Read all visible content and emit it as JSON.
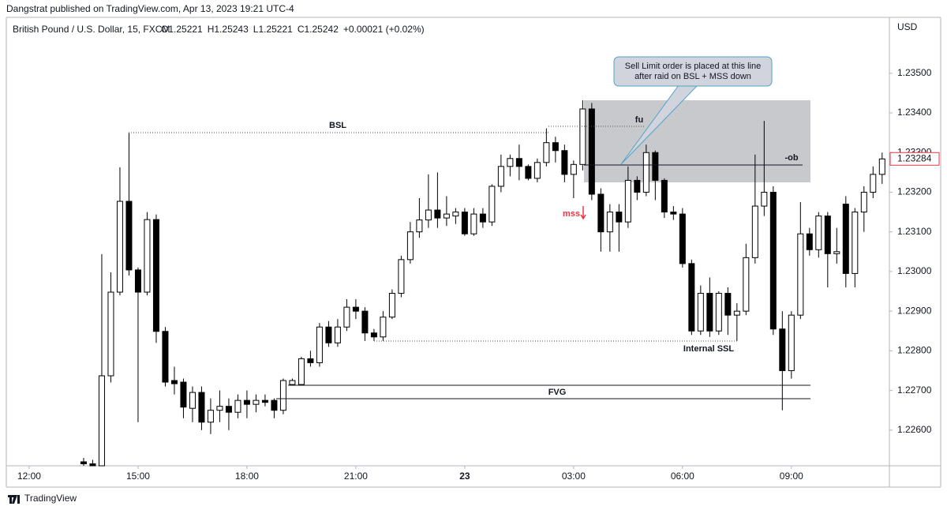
{
  "chart_data": {
    "type": "candlestick",
    "published_by": "Dangstrat published on TradingView.com, Apr 13, 2023 19:21 UTC-4",
    "title": "British Pound / U.S. Dollar, 15, FXCM",
    "header_values": [
      "O1.25221",
      "H1.25243",
      "L1.25221",
      "C1.25242",
      "+0.00021 (+0.02%)"
    ],
    "y_axis_label": "USD",
    "brand": "TradingView",
    "annotations": {
      "bsl": "BSL",
      "internal_ssl": "Internal SSL",
      "fvg": "FVG",
      "fu": "fu",
      "ob": "-ob",
      "mss": "mss",
      "callout": [
        "Sell Limit order is placed at this line",
        "after raid on BSL + MSS down"
      ]
    },
    "up_color": "#ffffff",
    "down_color": "#000000",
    "border_color": "#000000",
    "xlim": [
      -0.63,
      23.7
    ],
    "xticks": [
      {
        "value": 0,
        "label": "12:00"
      },
      {
        "value": 3,
        "label": "15:00"
      },
      {
        "value": 6,
        "label": "18:00"
      },
      {
        "value": 9,
        "label": "21:00"
      },
      {
        "value": 12,
        "label": "23"
      },
      {
        "value": 15,
        "label": "03:00"
      },
      {
        "value": 18,
        "label": "06:00"
      },
      {
        "value": 21,
        "label": "09:00"
      }
    ],
    "ylim": [
      1.2251,
      1.23641
    ],
    "yticks": [
      {
        "value": 1.226,
        "label": "1.22600"
      },
      {
        "value": 1.227,
        "label": "1.22700"
      },
      {
        "value": 1.228,
        "label": "1.22800"
      },
      {
        "value": 1.229,
        "label": "1.22900"
      },
      {
        "value": 1.23,
        "label": "1.23000"
      },
      {
        "value": 1.231,
        "label": "1.23100"
      },
      {
        "value": 1.232,
        "label": "1.23200"
      },
      {
        "value": 1.233,
        "label": "1.23300"
      },
      {
        "value": 1.234,
        "label": "1.23400"
      },
      {
        "value": 1.235,
        "label": "1.23500"
      }
    ],
    "x": [
      1.5,
      1.75,
      2,
      2.25,
      2.5,
      2.75,
      3,
      3.25,
      3.5,
      3.75,
      4,
      4.25,
      4.5,
      4.75,
      5,
      5.25,
      5.5,
      5.75,
      6,
      6.25,
      6.5,
      6.75,
      7,
      7.25,
      7.5,
      7.75,
      8,
      8.25,
      8.5,
      8.75,
      9,
      9.25,
      9.5,
      9.75,
      10,
      10.25,
      10.5,
      10.75,
      11,
      11.25,
      11.5,
      11.75,
      12,
      12.25,
      12.5,
      12.75,
      13,
      13.25,
      13.5,
      13.75,
      14,
      14.25,
      14.5,
      14.75,
      15,
      15.25,
      15.5,
      15.75,
      16,
      16.25,
      16.5,
      16.75,
      17,
      17.25,
      17.5,
      17.75,
      18,
      18.25,
      18.5,
      18.75,
      19,
      19.25,
      19.5,
      19.75,
      20,
      20.25,
      20.5,
      20.75,
      21,
      21.25,
      21.5,
      21.75,
      22,
      22.25,
      22.5,
      22.75,
      23,
      23.25,
      23.5
    ],
    "open": [
      1.2252,
      1.22515,
      1.2251,
      1.22737,
      1.22948,
      1.23177,
      1.23004,
      1.22948,
      1.23131,
      1.22849,
      1.22725,
      1.22721,
      1.22655,
      1.22695,
      1.2262,
      1.2265,
      1.2266,
      1.22645,
      1.22675,
      1.22665,
      1.22675,
      1.22675,
      1.2265,
      1.22715,
      1.22715,
      1.2278,
      1.2277,
      1.2286,
      1.2282,
      1.2286,
      1.2291,
      1.229,
      1.22845,
      1.22835,
      1.22885,
      1.22945,
      1.2303,
      1.231,
      1.2313,
      1.23155,
      1.23135,
      1.2314,
      1.2315,
      1.23095,
      1.23145,
      1.23125,
      1.23215,
      1.23265,
      1.23285,
      1.23265,
      1.23235,
      1.23275,
      1.23325,
      1.23305,
      1.23245,
      1.2327,
      1.2341,
      1.23195,
      1.231,
      1.2315,
      1.23125,
      1.2323,
      1.232,
      1.233,
      1.2323,
      1.2315,
      1.23145,
      1.2302,
      1.2285,
      1.22945,
      1.2285,
      1.22945,
      1.2289,
      1.229,
      1.23035,
      1.23165,
      1.232,
      1.22855,
      1.2275,
      1.2289,
      1.23095,
      1.23055,
      1.2314,
      1.23045,
      1.2317,
      1.22995,
      1.2315,
      1.232,
      1.23245
    ],
    "high": [
      1.2253,
      1.22525,
      1.23044,
      1.22998,
      1.23263,
      1.23351,
      1.2301,
      1.2315,
      1.23144,
      1.2286,
      1.2276,
      1.2273,
      1.2271,
      1.2271,
      1.2268,
      1.227,
      1.2268,
      1.2269,
      1.227,
      1.2269,
      1.2269,
      1.2268,
      1.2273,
      1.2273,
      1.22785,
      1.228,
      1.2287,
      1.22875,
      1.2288,
      1.2293,
      1.2293,
      1.2291,
      1.22855,
      1.229,
      1.22955,
      1.2304,
      1.23125,
      1.23185,
      1.23245,
      1.2325,
      1.2319,
      1.2316,
      1.2316,
      1.2316,
      1.2316,
      1.2322,
      1.23295,
      1.23295,
      1.2332,
      1.2327,
      1.23285,
      1.23361,
      1.2334,
      1.2332,
      1.2328,
      1.23432,
      1.23425,
      1.2321,
      1.2317,
      1.2317,
      1.23265,
      1.2324,
      1.2332,
      1.23305,
      1.23235,
      1.23165,
      1.2316,
      1.2303,
      1.22965,
      1.22985,
      1.2295,
      1.2296,
      1.2292,
      1.2307,
      1.23295,
      1.2338,
      1.23215,
      1.229,
      1.229,
      1.23175,
      1.2311,
      1.2315,
      1.2315,
      1.2311,
      1.2319,
      1.2316,
      1.23215,
      1.23265,
      1.233
    ],
    "low": [
      1.2251,
      1.2251,
      1.2251,
      1.2272,
      1.2294,
      1.2299,
      1.2262,
      1.2294,
      1.2282,
      1.2271,
      1.2269,
      1.2263,
      1.2262,
      1.226,
      1.2259,
      1.2262,
      1.226,
      1.2263,
      1.2263,
      1.22645,
      1.2266,
      1.2263,
      1.2264,
      1.22713,
      1.22713,
      1.2276,
      1.2276,
      1.2281,
      1.2281,
      1.2285,
      1.2288,
      1.22825,
      1.22825,
      1.22825,
      1.2288,
      1.22935,
      1.2302,
      1.23085,
      1.2311,
      1.2311,
      1.23115,
      1.2312,
      1.2309,
      1.2309,
      1.2311,
      1.23115,
      1.232,
      1.2324,
      1.2323,
      1.2323,
      1.23225,
      1.23265,
      1.23275,
      1.23225,
      1.23185,
      1.23255,
      1.2318,
      1.2305,
      1.2305,
      1.2305,
      1.2311,
      1.2318,
      1.2319,
      1.2318,
      1.23135,
      1.2313,
      1.2301,
      1.2284,
      1.2284,
      1.22835,
      1.2284,
      1.2284,
      1.22825,
      1.2289,
      1.2302,
      1.2314,
      1.2284,
      1.2265,
      1.2273,
      1.2288,
      1.2304,
      1.23035,
      1.2296,
      1.2302,
      1.2296,
      1.2296,
      1.231,
      1.23185,
      1.23221
    ],
    "close": [
      1.22515,
      1.2251,
      1.22737,
      1.22948,
      1.23177,
      1.23004,
      1.22948,
      1.23131,
      1.22849,
      1.22721,
      1.22717,
      1.22658,
      1.22695,
      1.2262,
      1.2265,
      1.2266,
      1.22645,
      1.22675,
      1.22665,
      1.22675,
      1.2267,
      1.2265,
      1.22725,
      1.22725,
      1.2278,
      1.2277,
      1.2286,
      1.2282,
      1.2286,
      1.2291,
      1.229,
      1.22845,
      1.22835,
      1.22885,
      1.22945,
      1.2303,
      1.231,
      1.2313,
      1.23155,
      1.23135,
      1.23145,
      1.2315,
      1.23095,
      1.23145,
      1.23125,
      1.23215,
      1.23265,
      1.23285,
      1.23265,
      1.23235,
      1.23275,
      1.23325,
      1.23305,
      1.23245,
      1.2327,
      1.2341,
      1.23195,
      1.231,
      1.2315,
      1.23125,
      1.2323,
      1.232,
      1.233,
      1.2323,
      1.2315,
      1.23145,
      1.2302,
      1.2285,
      1.22945,
      1.2285,
      1.22945,
      1.2289,
      1.229,
      1.23035,
      1.23165,
      1.232,
      1.22855,
      1.2275,
      1.2289,
      1.23095,
      1.23055,
      1.2314,
      1.23045,
      1.2305,
      1.22995,
      1.2315,
      1.232,
      1.23245,
      1.23284
    ]
  }
}
